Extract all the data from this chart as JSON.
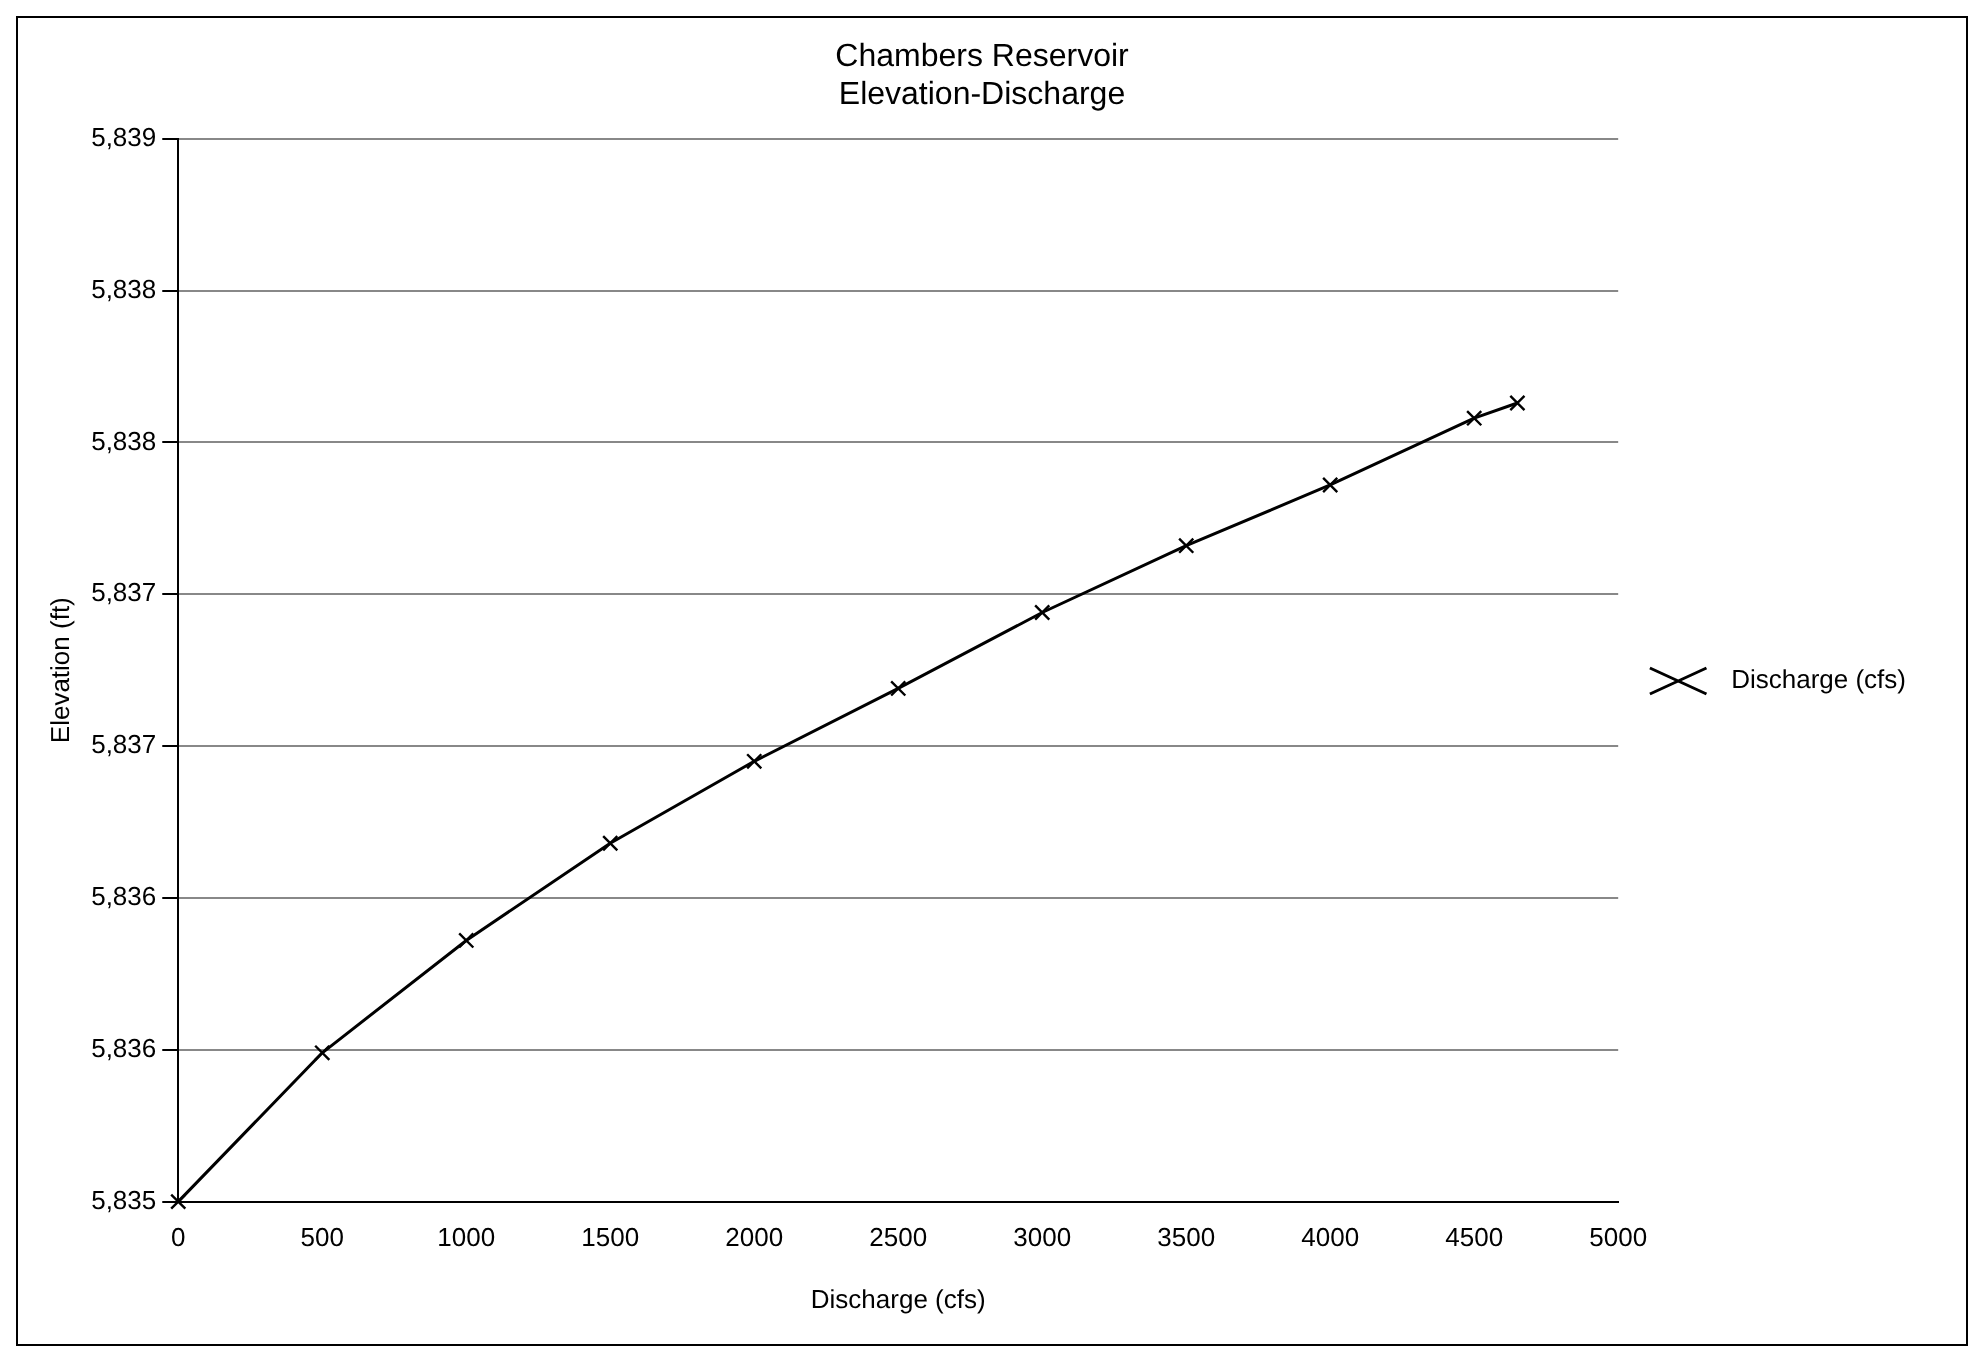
{
  "chart_data": {
    "type": "line",
    "title": [
      "Chambers Reservoir",
      "Elevation-Discharge"
    ],
    "xlabel": "Discharge (cfs)",
    "ylabel": "Elevation (ft)",
    "x": [
      0,
      500,
      1000,
      1500,
      2000,
      2500,
      3000,
      3500,
      4000,
      4500,
      4650
    ],
    "series": [
      {
        "name": "Discharge (cfs)",
        "color": "#000000",
        "values": [
          5835,
          5835.49,
          5835.86,
          5836.18,
          5836.45,
          5836.69,
          5836.94,
          5837.16,
          5837.36,
          5837.58,
          5837.63
        ]
      }
    ],
    "xlim": [
      0,
      5000
    ],
    "xticks": [
      0,
      500,
      1000,
      1500,
      2000,
      2500,
      3000,
      3500,
      4000,
      4500,
      5000
    ],
    "ylim": [
      5835,
      5838.5
    ],
    "yticks": [
      {
        "value": 5835,
        "label": "5,835"
      },
      {
        "value": 5835.5,
        "label": "5,836"
      },
      {
        "value": 5836,
        "label": "5,836"
      },
      {
        "value": 5836.5,
        "label": "5,837"
      },
      {
        "value": 5837,
        "label": "5,837"
      },
      {
        "value": 5837.5,
        "label": "5,838"
      },
      {
        "value": 5838,
        "label": "5,838"
      },
      {
        "value": 5838.5,
        "label": "5,839"
      }
    ],
    "grid": "y",
    "legend": "right",
    "marker": "cross",
    "line_style": "solid"
  }
}
